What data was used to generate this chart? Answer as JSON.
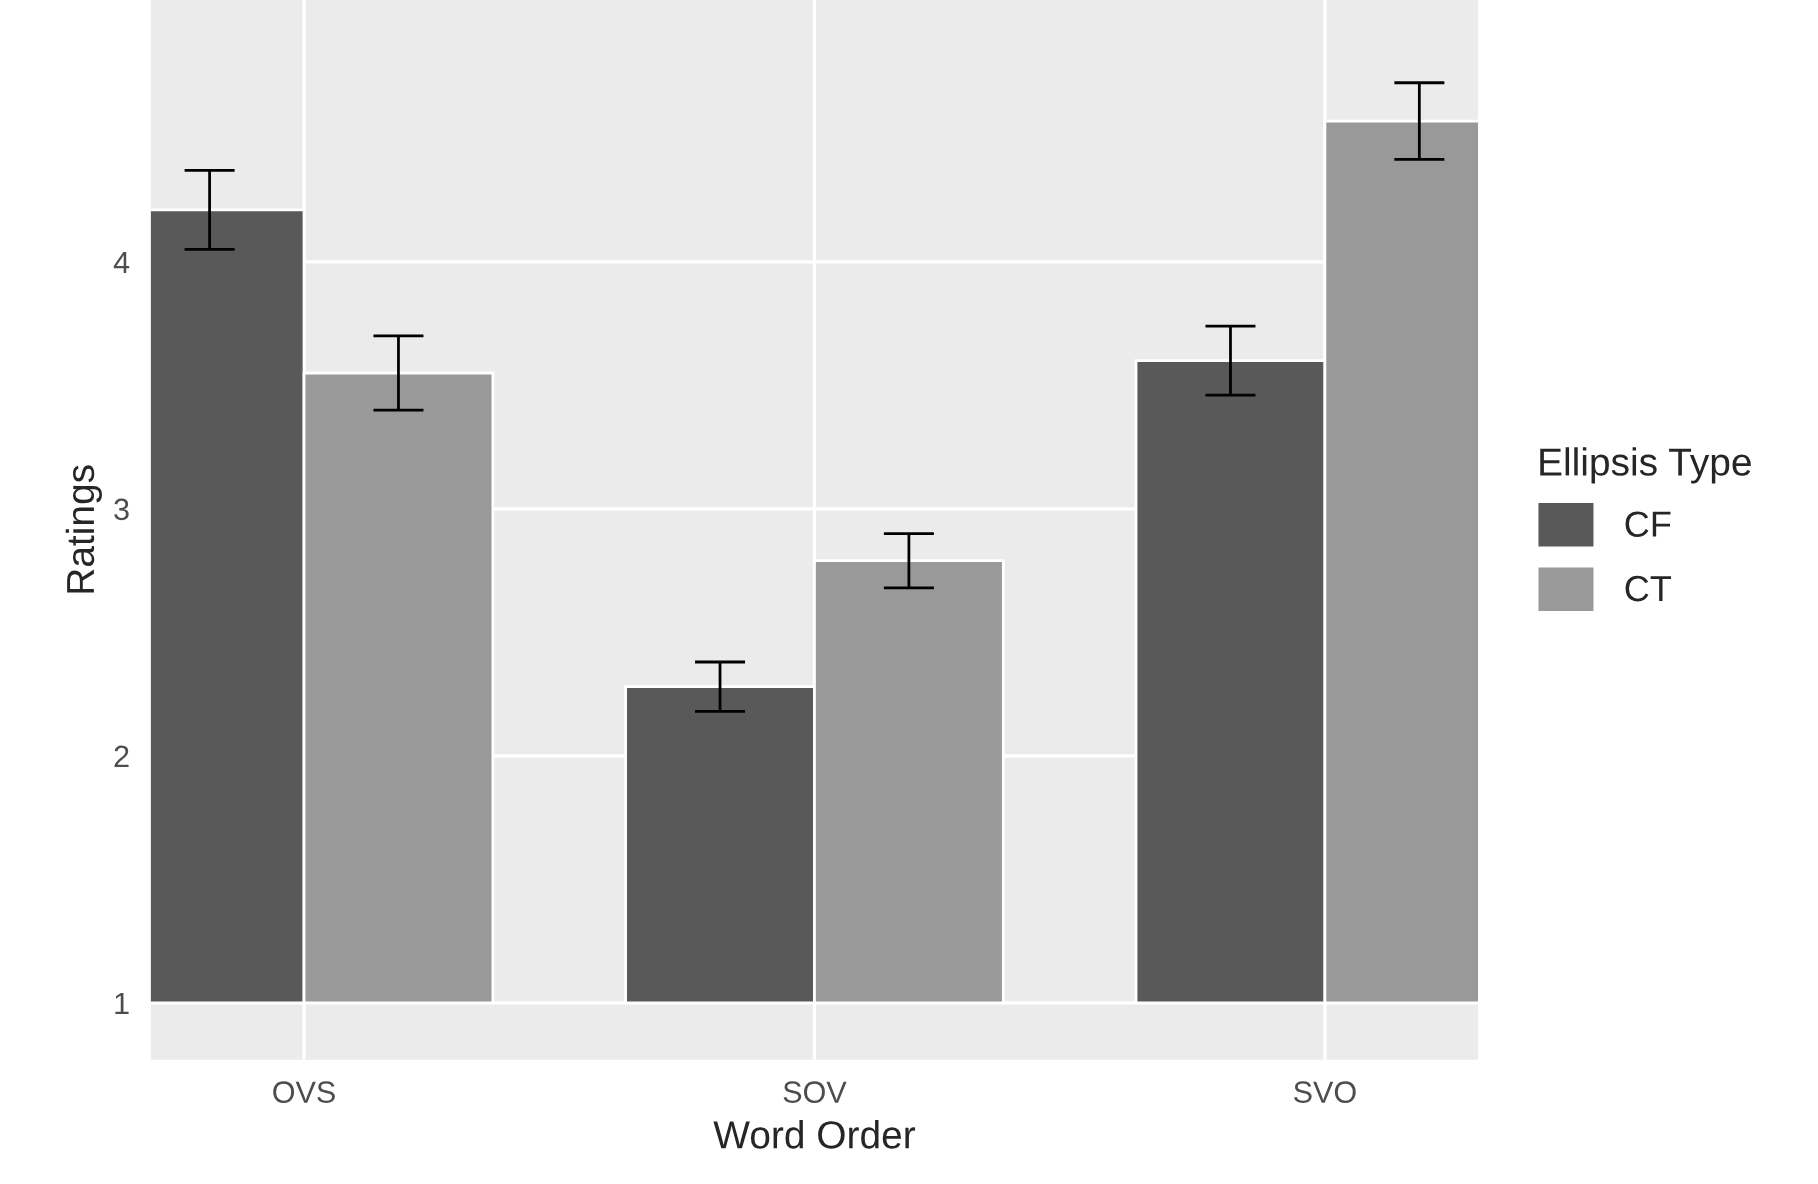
{
  "chart_data": {
    "type": "bar",
    "xlabel": "Word Order",
    "ylabel": "Ratings",
    "legend_title": "Ellipsis Type",
    "categories": [
      "OVS",
      "SOV",
      "SVO"
    ],
    "series": [
      {
        "name": "CF",
        "color": "#595959",
        "base": [
          1,
          1,
          1
        ],
        "values": [
          3.21,
          1.28,
          2.6
        ],
        "errors": [
          0.16,
          0.1,
          0.14
        ]
      },
      {
        "name": "CT",
        "color": "#999999",
        "base": [
          1,
          1,
          1
        ],
        "values": [
          2.55,
          1.79,
          3.57
        ],
        "errors": [
          0.15,
          0.11,
          0.155
        ]
      }
    ],
    "ylim": [
      0.77,
      5.06
    ],
    "yticks": [
      1,
      2,
      3,
      4
    ],
    "grid": true,
    "legend": "right"
  }
}
